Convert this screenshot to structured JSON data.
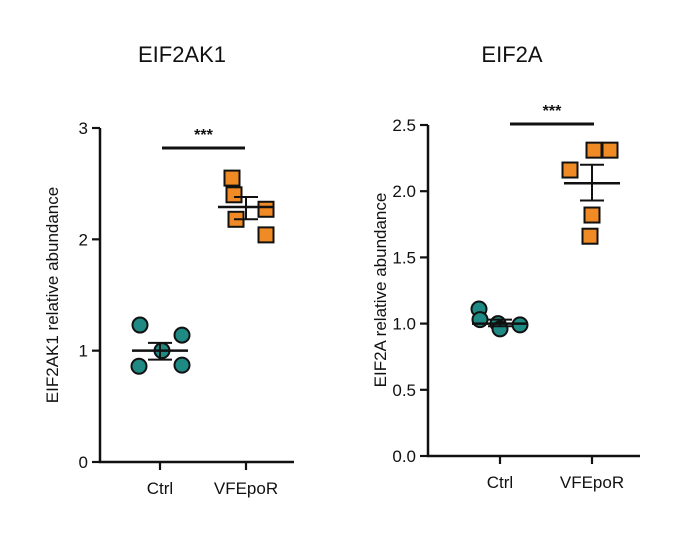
{
  "chart_data": [
    {
      "type": "scatter",
      "title": "EIF2AK1",
      "xlabel": "",
      "ylabel": "EIF2AK1 relative abundance",
      "categories": [
        "Ctrl",
        "VFEpoR"
      ],
      "ylim": [
        0,
        3
      ],
      "yticks": [
        "0",
        "1",
        "2",
        "3"
      ],
      "yticks_values": [
        0,
        1,
        2,
        3
      ],
      "series": [
        {
          "category": "Ctrl",
          "marker": "circle",
          "color": "#1f8a84",
          "points": [
            1.23,
            1.14,
            1.0,
            0.87,
            0.86
          ],
          "mean": 1.0,
          "sem_low": 0.92,
          "sem_high": 1.07
        },
        {
          "category": "VFEpoR",
          "marker": "square",
          "color": "#f08a24",
          "points": [
            2.55,
            2.4,
            2.27,
            2.18,
            2.04
          ],
          "mean": 2.29,
          "sem_low": 2.18,
          "sem_high": 2.38
        }
      ],
      "significance": "***"
    },
    {
      "type": "scatter",
      "title": "EIF2A",
      "xlabel": "",
      "ylabel": "EIF2A  relative abundance",
      "categories": [
        "Ctrl",
        "VFEpoR"
      ],
      "ylim": [
        0,
        2.5
      ],
      "yticks": [
        "0.0",
        "0.5",
        "1.0",
        "1.5",
        "2.0",
        "2.5"
      ],
      "yticks_values": [
        0,
        0.5,
        1.0,
        1.5,
        2.0,
        2.5
      ],
      "series": [
        {
          "category": "Ctrl",
          "marker": "circle",
          "color": "#1f8a84",
          "points": [
            1.11,
            1.03,
            0.99,
            1.0,
            0.96
          ],
          "mean": 1.0,
          "sem_low": 0.98,
          "sem_high": 1.03
        },
        {
          "category": "VFEpoR",
          "marker": "square",
          "color": "#f08a24",
          "points": [
            2.31,
            2.31,
            2.16,
            1.82,
            1.66
          ],
          "mean": 2.06,
          "sem_low": 1.93,
          "sem_high": 2.2
        }
      ],
      "significance": "***"
    }
  ]
}
